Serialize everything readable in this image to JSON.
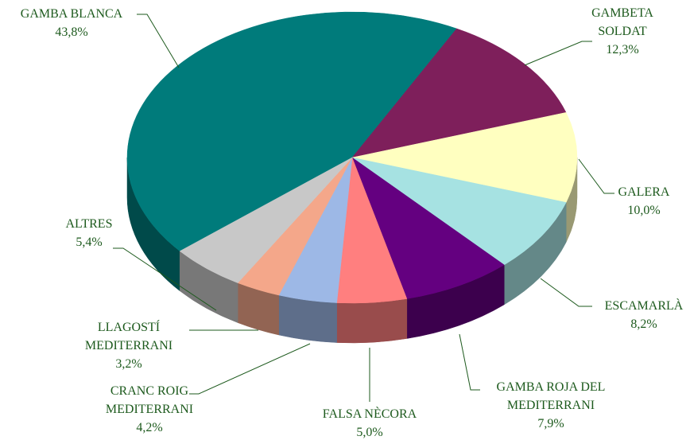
{
  "chart_data": {
    "type": "pie",
    "categories": [
      "GAMBA BLANCA",
      "GAMBETA SOLDAT",
      "GALERA",
      "ESCAMARLÀ",
      "GAMBA ROJA DEL MEDITERRANI",
      "FALSA NÈCORA",
      "CRANC ROIG MEDITERRANI",
      "LLAGOSTÍ MEDITERRANI",
      "ALTRES"
    ],
    "values": [
      43.8,
      12.3,
      10.0,
      8.2,
      7.9,
      5.0,
      4.2,
      3.2,
      5.4
    ],
    "value_labels": [
      "43,8%",
      "12,3%",
      "10,0%",
      "8,2%",
      "7,9%",
      "5,0%",
      "4,2%",
      "3,2%",
      "5,4%"
    ],
    "colors": [
      "#007b7b",
      "#7e1f5b",
      "#ffffc0",
      "#a6e2e2",
      "#640080",
      "#ff7f7f",
      "#9db8e6",
      "#f4a78a",
      "#c8c8c8"
    ]
  }
}
